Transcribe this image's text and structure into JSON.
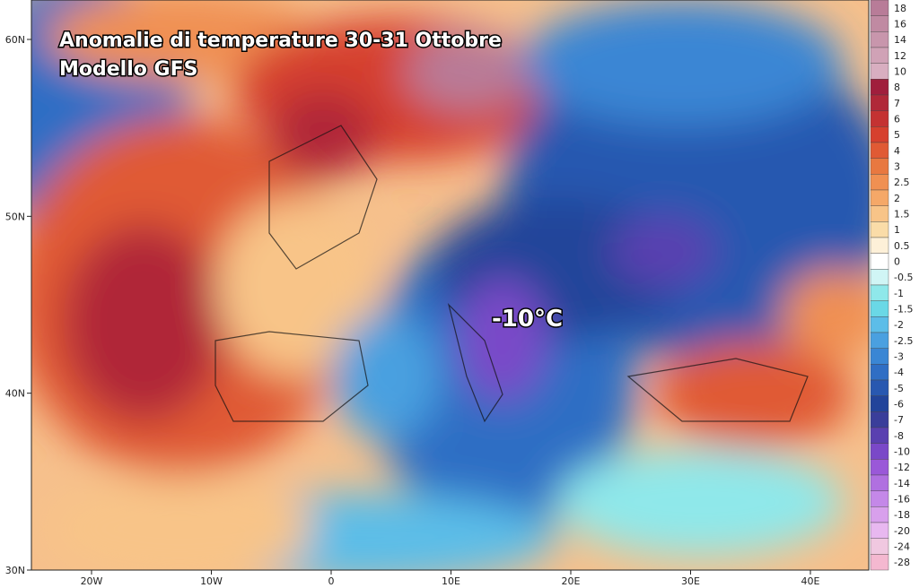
{
  "map": {
    "title": [
      "Anomalie di temperature 30-31 Ottobre",
      "Modello GFS"
    ],
    "annotation": "-10°C",
    "lat_labels": [
      "60N",
      "50N",
      "40N",
      "30N"
    ],
    "lon_labels": [
      "20W",
      "10W",
      "0",
      "10E",
      "20E",
      "30E",
      "40E"
    ],
    "colorbar": [
      {
        "label": "18",
        "color": "#b87c98"
      },
      {
        "label": "16",
        "color": "#c08aa2"
      },
      {
        "label": "14",
        "color": "#c896ac"
      },
      {
        "label": "12",
        "color": "#d0a2b6"
      },
      {
        "label": "10",
        "color": "#d8aec0"
      },
      {
        "label": "8",
        "color": "#a01e3c"
      },
      {
        "label": "7",
        "color": "#b02838"
      },
      {
        "label": "6",
        "color": "#c43232"
      },
      {
        "label": "5",
        "color": "#d6402e"
      },
      {
        "label": "4",
        "color": "#e05a34"
      },
      {
        "label": "3",
        "color": "#e87840"
      },
      {
        "label": "2.5",
        "color": "#f09052"
      },
      {
        "label": "2",
        "color": "#f5a868"
      },
      {
        "label": "1.5",
        "color": "#f8c488"
      },
      {
        "label": "1",
        "color": "#fadca8"
      },
      {
        "label": "0.5",
        "color": "#fdf0d8"
      },
      {
        "label": "0",
        "color": "#ffffff"
      },
      {
        "label": "-0.5",
        "color": "#d0f5f5"
      },
      {
        "label": "-1",
        "color": "#8fe8ea"
      },
      {
        "label": "-1.5",
        "color": "#6ad8e6"
      },
      {
        "label": "-2",
        "color": "#5cbde8"
      },
      {
        "label": "-2.5",
        "color": "#4aa0e0"
      },
      {
        "label": "-3",
        "color": "#3a86d4"
      },
      {
        "label": "-4",
        "color": "#2f6ec4"
      },
      {
        "label": "-5",
        "color": "#2858b0"
      },
      {
        "label": "-6",
        "color": "#22449a"
      },
      {
        "label": "-7",
        "color": "#3a3e9a"
      },
      {
        "label": "-8",
        "color": "#5a40b0"
      },
      {
        "label": "-10",
        "color": "#7a48c8"
      },
      {
        "label": "-12",
        "color": "#9a58d8"
      },
      {
        "label": "-14",
        "color": "#b070e0"
      },
      {
        "label": "-16",
        "color": "#c488e8"
      },
      {
        "label": "-18",
        "color": "#d8a0ec"
      },
      {
        "label": "-20",
        "color": "#e8b8f0"
      },
      {
        "label": "-24",
        "color": "#f0c8e0"
      },
      {
        "label": "-28",
        "color": "#f4b8d0"
      }
    ]
  }
}
